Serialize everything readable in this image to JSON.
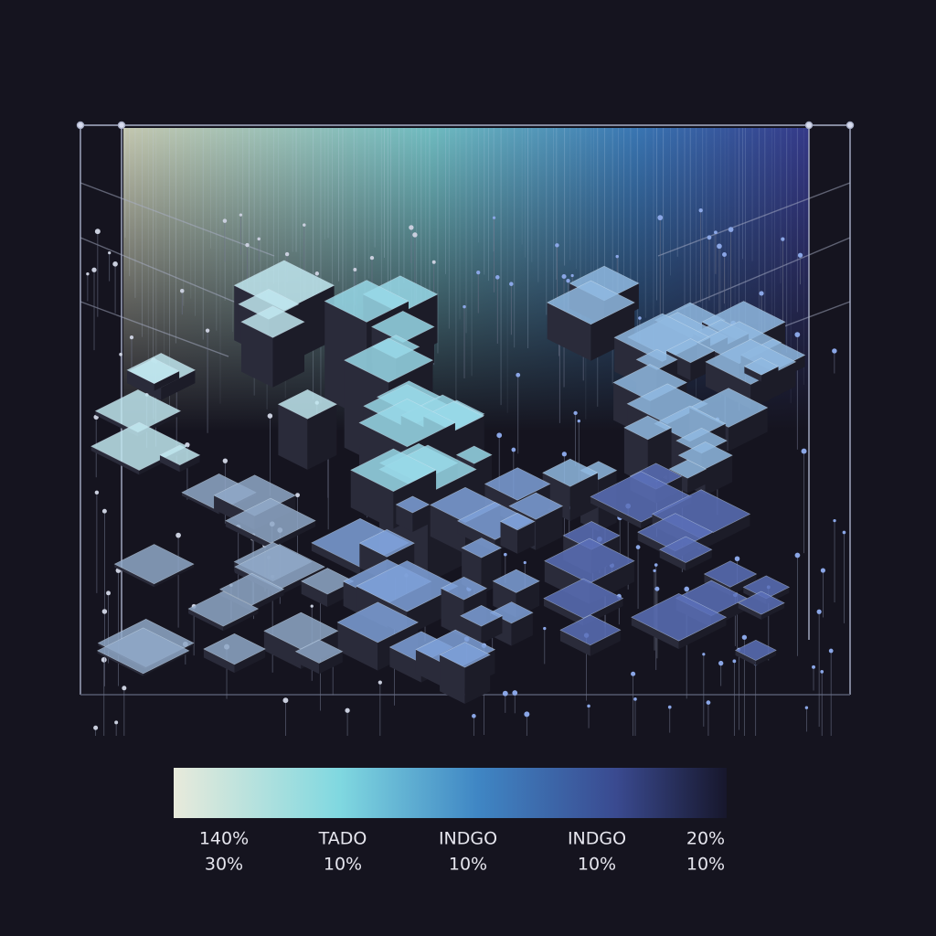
{
  "legend": {
    "labels": [
      {
        "top": "140%",
        "bottom": "30%"
      },
      {
        "top": "TADO",
        "bottom": "10%"
      },
      {
        "top": "INDGO",
        "bottom": "10%"
      },
      {
        "top": "INDGO",
        "bottom": "10%"
      },
      {
        "top": "20%",
        "bottom": "10%"
      }
    ]
  }
}
